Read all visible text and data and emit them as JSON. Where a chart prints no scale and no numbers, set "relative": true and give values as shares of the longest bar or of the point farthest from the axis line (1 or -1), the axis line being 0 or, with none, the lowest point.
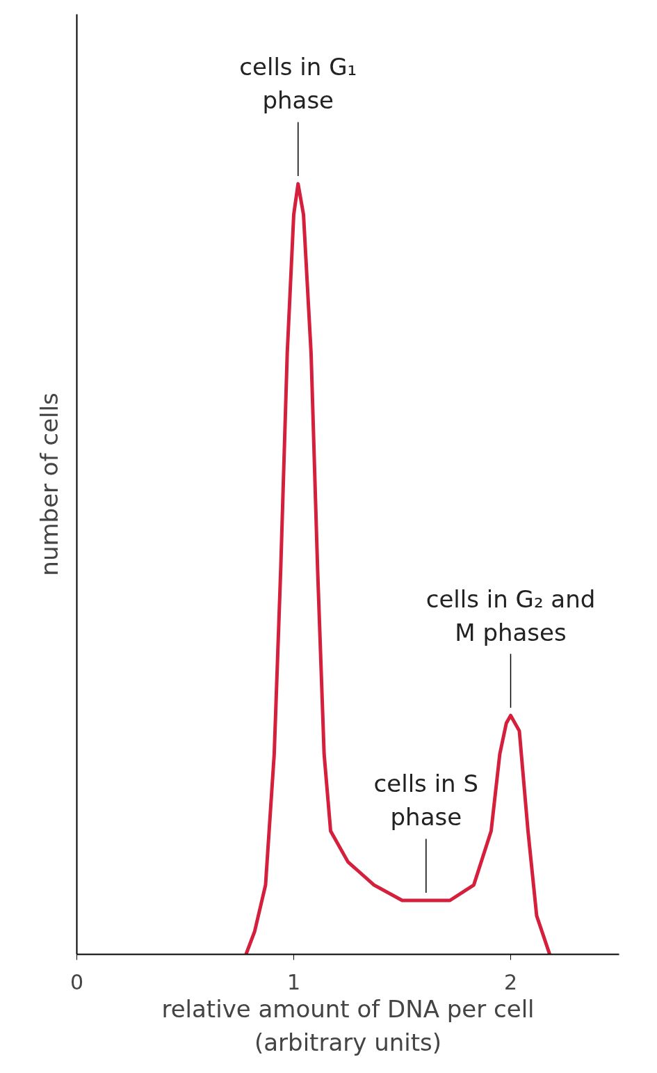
{
  "chart_data": {
    "type": "line",
    "relative": true,
    "xlabel": "relative amount of DNA per cell\n(arbitrary units)",
    "ylabel": "number of cells",
    "xlim": [
      0,
      2.5
    ],
    "xticks": [
      0,
      1,
      2
    ],
    "grid": false,
    "marker": "none",
    "line_style": "solid",
    "x": [
      0.78,
      0.82,
      0.87,
      0.91,
      0.94,
      0.97,
      1.0,
      1.02,
      1.045,
      1.08,
      1.11,
      1.14,
      1.17,
      1.25,
      1.37,
      1.5,
      1.61,
      1.72,
      1.83,
      1.91,
      1.95,
      1.98,
      2.0,
      2.04,
      2.08,
      2.12,
      2.18
    ],
    "series": [
      {
        "color": "#d4203c",
        "values": [
          0,
          0.03,
          0.09,
          0.26,
          0.5,
          0.78,
          0.96,
          1,
          0.96,
          0.78,
          0.5,
          0.26,
          0.16,
          0.12,
          0.09,
          0.07,
          0.07,
          0.07,
          0.09,
          0.16,
          0.26,
          0.3,
          0.31,
          0.29,
          0.16,
          0.05,
          0
        ]
      }
    ],
    "annotations": [
      {
        "text": "cells in G₁\nphase",
        "x": 1.02,
        "y": 1
      },
      {
        "text": "cells in S\nphase",
        "x": 1.61,
        "y": 0.07
      },
      {
        "text": "cells in G₂ and\nM phases",
        "x": 2.0,
        "y": 0.31
      }
    ]
  }
}
